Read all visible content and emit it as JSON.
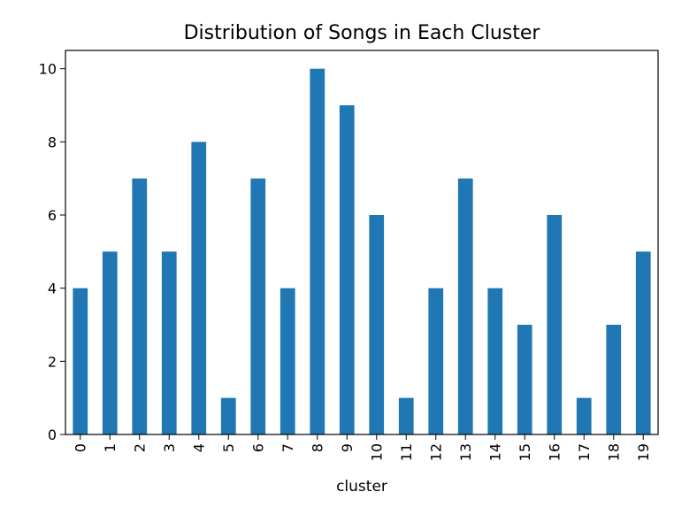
{
  "chart_data": {
    "type": "bar",
    "title": "Distribution of Songs in Each Cluster",
    "xlabel": "cluster",
    "ylabel": "",
    "categories": [
      "0",
      "1",
      "2",
      "3",
      "4",
      "5",
      "6",
      "7",
      "8",
      "9",
      "10",
      "11",
      "12",
      "13",
      "14",
      "15",
      "16",
      "17",
      "18",
      "19"
    ],
    "values": [
      4,
      5,
      7,
      5,
      8,
      1,
      7,
      4,
      10,
      9,
      6,
      1,
      4,
      7,
      4,
      3,
      6,
      1,
      3,
      5
    ],
    "ylim": [
      0,
      10.5
    ],
    "yticks": [
      0,
      2,
      4,
      6,
      8,
      10
    ],
    "x_tick_rotation": "vertical",
    "grid": false,
    "legend": "none",
    "colors": {
      "bar": "#1f77b4",
      "axis": "#000000",
      "background": "#ffffff"
    }
  }
}
